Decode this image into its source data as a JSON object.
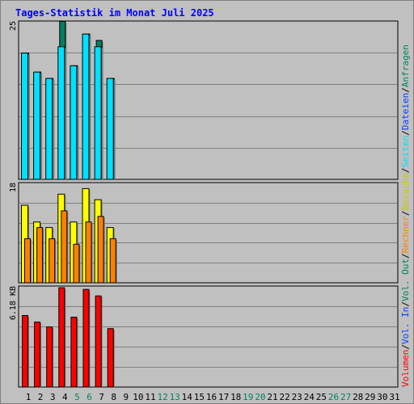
{
  "chart_data": {
    "type": "bar",
    "title": "Tages-Statistik im Monat Juli 2025",
    "x": [
      "1",
      "2",
      "3",
      "4",
      "5",
      "6",
      "7",
      "8",
      "9",
      "10",
      "11",
      "12",
      "13",
      "14",
      "15",
      "16",
      "17",
      "18",
      "19",
      "20",
      "21",
      "22",
      "23",
      "24",
      "25",
      "26",
      "27",
      "28",
      "29",
      "30",
      "31"
    ],
    "weekend_days": [
      "5",
      "6",
      "12",
      "13",
      "19",
      "20",
      "26",
      "27"
    ],
    "panels": [
      {
        "ylabel": "25",
        "ymax": 25,
        "series": [
          {
            "name": "Anfragen",
            "color": "#008060",
            "values": [
              20,
              17,
              16,
              25,
              18,
              23,
              22,
              16,
              0,
              0,
              0,
              0,
              0,
              0,
              0,
              0,
              0,
              0,
              0,
              0,
              0,
              0,
              0,
              0,
              0,
              0,
              0,
              0,
              0,
              0,
              0
            ]
          },
          {
            "name": "Dateien",
            "color": "#0040ff",
            "values": [
              null,
              null,
              null,
              null,
              null,
              null,
              null,
              null,
              null,
              null,
              null,
              null,
              null,
              null,
              null,
              null,
              null,
              null,
              null,
              null,
              null,
              null,
              null,
              null,
              null,
              null,
              null,
              null,
              null,
              null,
              null
            ]
          },
          {
            "name": "Seiten",
            "color": "#00e0ff",
            "values": [
              20,
              17,
              16,
              21,
              18,
              23,
              21,
              16,
              0,
              0,
              0,
              0,
              0,
              0,
              0,
              0,
              0,
              0,
              0,
              0,
              0,
              0,
              0,
              0,
              0,
              0,
              0,
              0,
              0,
              0,
              0
            ]
          }
        ]
      },
      {
        "ylabel": "18",
        "ymax": 18,
        "series": [
          {
            "name": "Besuche",
            "color": "#ffff00",
            "values": [
              14,
              11,
              10,
              16,
              11,
              17,
              15,
              10,
              0,
              0,
              0,
              0,
              0,
              0,
              0,
              0,
              0,
              0,
              0,
              0,
              0,
              0,
              0,
              0,
              0,
              0,
              0,
              0,
              0,
              0,
              0
            ]
          },
          {
            "name": "Rechner",
            "color": "#ff8000",
            "values": [
              8,
              10,
              8,
              13,
              7,
              11,
              12,
              8,
              0,
              0,
              0,
              0,
              0,
              0,
              0,
              0,
              0,
              0,
              0,
              0,
              0,
              0,
              0,
              0,
              0,
              0,
              0,
              0,
              0,
              0,
              0
            ]
          }
        ]
      },
      {
        "ylabel": "6.18 KB",
        "ymax": 6.18,
        "series": [
          {
            "name": "Volumen",
            "color": "#ff0000",
            "values": [
              4.4,
              4.0,
              3.7,
              6.1,
              4.3,
              6.0,
              5.6,
              3.6,
              0,
              0,
              0,
              0,
              0,
              0,
              0,
              0,
              0,
              0,
              0,
              0,
              0,
              0,
              0,
              0,
              0,
              0,
              0,
              0,
              0,
              0,
              0
            ]
          }
        ]
      }
    ],
    "side_labels": [
      {
        "text": "Anfragen",
        "color": "#008060"
      },
      {
        "text": "/",
        "color": "#000000"
      },
      {
        "text": "Dateien",
        "color": "#0040ff"
      },
      {
        "text": "/",
        "color": "#000000"
      },
      {
        "text": "Seiten",
        "color": "#00e0ff"
      },
      {
        "text": "/",
        "color": "#000000"
      },
      {
        "text": "Besuche",
        "color": "#c8c800"
      },
      {
        "text": "/",
        "color": "#000000"
      },
      {
        "text": "Rechner",
        "color": "#ff8000"
      },
      {
        "text": "/",
        "color": "#000000"
      },
      {
        "text": "Vol. Out",
        "color": "#008060"
      },
      {
        "text": "/",
        "color": "#000000"
      },
      {
        "text": "Vol. In",
        "color": "#0040ff"
      },
      {
        "text": "/",
        "color": "#000000"
      },
      {
        "text": "Volumen",
        "color": "#ff0000"
      }
    ],
    "colors": {
      "background": "#c0c0c0",
      "title": "#0000ff",
      "weekend_label": "#008060",
      "weekday_label": "#000000",
      "gridline": "#808080"
    },
    "grid": true
  }
}
